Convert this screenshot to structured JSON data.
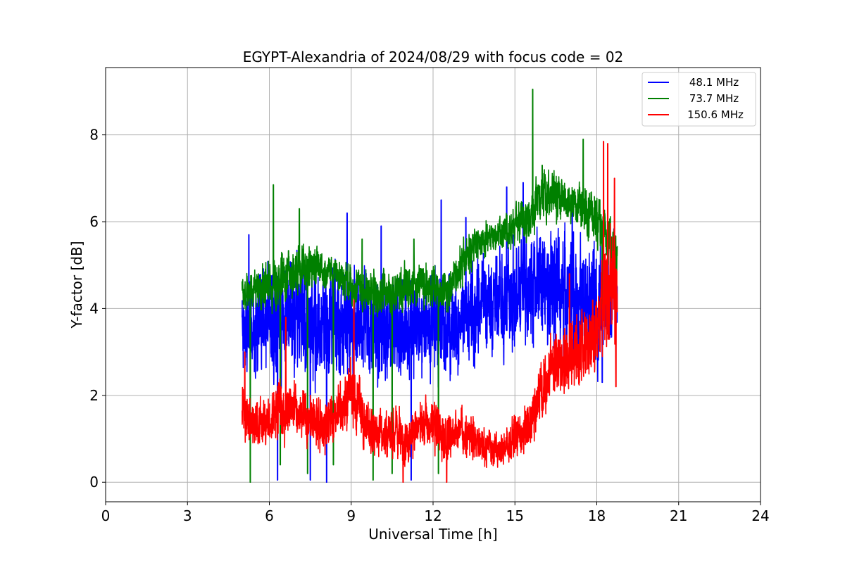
{
  "chart_data": {
    "type": "line",
    "title": "EGYPT-Alexandria of 2024/08/29 with focus code = 02",
    "xlabel": "Universal Time [h]",
    "ylabel": "Y-factor [dB]",
    "xlim": [
      0,
      24
    ],
    "ylim": [
      -0.45,
      9.55
    ],
    "xticks": [
      0,
      3,
      6,
      9,
      12,
      15,
      18,
      21,
      24
    ],
    "yticks": [
      0,
      2,
      4,
      6,
      8
    ],
    "grid": true,
    "legend_position": "top-right",
    "x_range_observed": [
      5.0,
      18.75
    ],
    "series": [
      {
        "name": "48.1 MHz",
        "color": "#0000ff",
        "x": [
          5.0,
          5.5,
          6.0,
          6.5,
          7.0,
          7.5,
          8.0,
          8.5,
          9.0,
          9.5,
          10.0,
          10.5,
          11.0,
          11.5,
          12.0,
          12.5,
          13.0,
          13.5,
          14.0,
          14.5,
          15.0,
          15.5,
          16.0,
          16.5,
          17.0,
          17.5,
          18.0,
          18.5,
          18.75
        ],
        "mean": [
          3.4,
          3.6,
          3.7,
          3.9,
          3.8,
          3.6,
          3.7,
          3.5,
          3.8,
          3.7,
          3.5,
          3.6,
          3.5,
          3.6,
          3.6,
          3.4,
          3.6,
          3.9,
          4.0,
          4.2,
          4.3,
          4.5,
          4.4,
          4.5,
          4.3,
          4.1,
          4.0,
          4.3,
          4.5
        ],
        "amplitude": [
          0.9,
          1.2,
          1.3,
          1.3,
          1.4,
          1.3,
          1.4,
          1.3,
          1.3,
          1.2,
          1.1,
          1.2,
          1.2,
          1.2,
          1.2,
          1.1,
          1.1,
          1.2,
          1.2,
          1.2,
          1.3,
          1.4,
          1.3,
          1.4,
          1.4,
          1.3,
          1.4,
          1.3,
          1.2
        ],
        "spikes": [
          [
            5.25,
            5.7
          ],
          [
            6.3,
            0.05
          ],
          [
            7.5,
            0.05
          ],
          [
            8.1,
            0.0
          ],
          [
            8.85,
            6.2
          ],
          [
            10.1,
            5.9
          ],
          [
            11.2,
            0.05
          ],
          [
            12.3,
            6.5
          ],
          [
            13.2,
            6.1
          ],
          [
            14.7,
            6.8
          ],
          [
            15.3,
            6.9
          ],
          [
            17.1,
            6.4
          ],
          [
            18.2,
            2.3
          ]
        ]
      },
      {
        "name": "73.7 MHz",
        "color": "#008000",
        "x": [
          5.0,
          5.5,
          6.0,
          6.5,
          7.0,
          7.5,
          8.0,
          8.5,
          9.0,
          9.5,
          10.0,
          10.5,
          11.0,
          11.5,
          12.0,
          12.5,
          13.0,
          13.5,
          14.0,
          14.5,
          15.0,
          15.5,
          16.0,
          16.5,
          17.0,
          17.5,
          18.0,
          18.5,
          18.75
        ],
        "mean": [
          4.3,
          4.4,
          4.5,
          4.7,
          4.9,
          5.0,
          4.9,
          4.8,
          4.5,
          4.4,
          4.3,
          4.4,
          4.5,
          4.6,
          4.5,
          4.4,
          5.0,
          5.5,
          5.6,
          5.7,
          5.9,
          6.1,
          6.6,
          6.6,
          6.4,
          6.3,
          6.0,
          5.6,
          5.0
        ],
        "amplitude": [
          0.4,
          0.5,
          0.6,
          0.6,
          0.6,
          0.5,
          0.4,
          0.4,
          0.5,
          0.5,
          0.5,
          0.5,
          0.5,
          0.5,
          0.5,
          0.5,
          0.5,
          0.5,
          0.4,
          0.4,
          0.5,
          0.6,
          0.6,
          0.6,
          0.5,
          0.6,
          0.6,
          0.6,
          0.6
        ],
        "spikes": [
          [
            5.3,
            0.0
          ],
          [
            6.15,
            6.85
          ],
          [
            6.4,
            0.4
          ],
          [
            7.1,
            6.3
          ],
          [
            7.4,
            0.2
          ],
          [
            8.35,
            0.4
          ],
          [
            9.4,
            5.6
          ],
          [
            9.8,
            0.05
          ],
          [
            10.5,
            0.2
          ],
          [
            11.3,
            5.6
          ],
          [
            12.2,
            0.2
          ],
          [
            15.65,
            9.05
          ],
          [
            16.0,
            7.3
          ],
          [
            17.5,
            7.9
          ],
          [
            18.2,
            4.0
          ]
        ]
      },
      {
        "name": "150.6 MHz",
        "color": "#ff0000",
        "x": [
          5.0,
          5.5,
          6.0,
          6.5,
          7.0,
          7.5,
          8.0,
          8.5,
          9.0,
          9.5,
          10.0,
          10.5,
          11.0,
          11.5,
          12.0,
          12.5,
          13.0,
          13.5,
          14.0,
          14.5,
          15.0,
          15.5,
          16.0,
          16.5,
          17.0,
          17.5,
          18.0,
          18.5,
          18.75
        ],
        "mean": [
          1.6,
          1.3,
          1.5,
          1.7,
          1.6,
          1.4,
          1.3,
          1.5,
          2.1,
          1.4,
          1.1,
          1.2,
          0.9,
          1.4,
          1.3,
          1.0,
          1.2,
          1.0,
          0.8,
          0.8,
          1.0,
          1.3,
          2.2,
          2.7,
          2.9,
          3.1,
          3.5,
          4.5,
          4.0
        ],
        "amplitude": [
          0.6,
          0.6,
          0.6,
          0.7,
          0.6,
          0.6,
          0.6,
          0.6,
          0.8,
          0.6,
          0.6,
          0.6,
          0.6,
          0.6,
          0.6,
          0.6,
          0.5,
          0.5,
          0.4,
          0.4,
          0.5,
          0.6,
          0.7,
          0.8,
          0.8,
          0.9,
          1.0,
          1.4,
          1.2
        ],
        "spikes": [
          [
            5.1,
            3.0
          ],
          [
            6.6,
            3.8
          ],
          [
            9.1,
            4.2
          ],
          [
            10.9,
            0.0
          ],
          [
            12.5,
            0.0
          ],
          [
            17.0,
            4.8
          ],
          [
            18.25,
            7.85
          ],
          [
            18.4,
            7.8
          ],
          [
            18.65,
            7.0
          ],
          [
            18.7,
            2.2
          ]
        ]
      }
    ]
  }
}
